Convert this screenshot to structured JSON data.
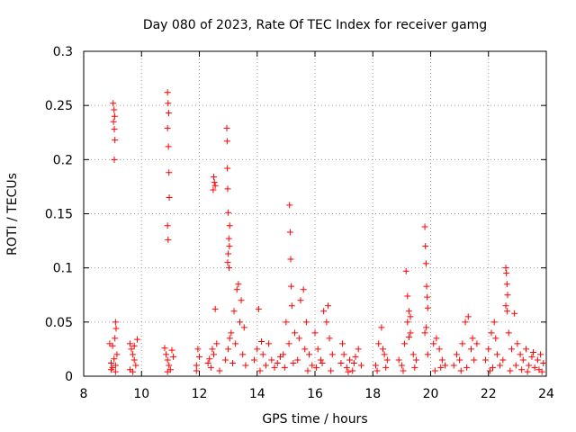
{
  "chart_data": {
    "type": "scatter",
    "title": "Day 080 of 2023, Rate Of TEC Index for receiver gamg",
    "xlabel": "GPS time / hours",
    "ylabel": "ROTI / TECUs",
    "xlim": [
      8,
      24
    ],
    "ylim": [
      0,
      0.3
    ],
    "x_ticks": [
      "8",
      "10",
      "12",
      "14",
      "16",
      "18",
      "20",
      "22",
      "24"
    ],
    "y_ticks": [
      "0",
      "0.05",
      "0.1",
      "0.15",
      "0.2",
      "0.25",
      "0.3"
    ],
    "grid": true,
    "marker": "+",
    "color": "#ff0000",
    "series": [
      {
        "name": "ROTI",
        "points": [
          [
            8.9,
            0.03
          ],
          [
            8.95,
            0.012
          ],
          [
            9.0,
            0.008
          ],
          [
            9.05,
            0.016
          ],
          [
            9.1,
            0.004
          ],
          [
            9.0,
            0.028
          ],
          [
            8.95,
            0.006
          ],
          [
            9.1,
            0.01
          ],
          [
            9.02,
            0.252
          ],
          [
            9.05,
            0.246
          ],
          [
            9.07,
            0.24
          ],
          [
            9.03,
            0.235
          ],
          [
            9.06,
            0.228
          ],
          [
            9.08,
            0.218
          ],
          [
            9.06,
            0.2
          ],
          [
            9.1,
            0.05
          ],
          [
            9.12,
            0.044
          ],
          [
            9.08,
            0.035
          ],
          [
            9.15,
            0.02
          ],
          [
            9.6,
            0.03
          ],
          [
            9.65,
            0.025
          ],
          [
            9.7,
            0.02
          ],
          [
            9.75,
            0.015
          ],
          [
            9.8,
            0.01
          ],
          [
            9.6,
            0.006
          ],
          [
            9.7,
            0.004
          ],
          [
            9.85,
            0.034
          ],
          [
            9.75,
            0.028
          ],
          [
            10.8,
            0.026
          ],
          [
            10.85,
            0.02
          ],
          [
            10.9,
            0.015
          ],
          [
            10.95,
            0.01
          ],
          [
            11.0,
            0.006
          ],
          [
            10.9,
            0.004
          ],
          [
            11.05,
            0.024
          ],
          [
            11.1,
            0.018
          ],
          [
            10.9,
            0.262
          ],
          [
            10.92,
            0.252
          ],
          [
            10.94,
            0.243
          ],
          [
            10.9,
            0.229
          ],
          [
            10.93,
            0.212
          ],
          [
            10.95,
            0.188
          ],
          [
            10.96,
            0.165
          ],
          [
            10.9,
            0.139
          ],
          [
            10.92,
            0.126
          ],
          [
            11.9,
            0.01
          ],
          [
            11.95,
            0.025
          ],
          [
            12.0,
            0.018
          ],
          [
            11.9,
            0.005
          ],
          [
            12.3,
            0.012
          ],
          [
            12.4,
            0.008
          ],
          [
            12.5,
            0.02
          ],
          [
            12.6,
            0.03
          ],
          [
            12.35,
            0.016
          ],
          [
            12.45,
            0.025
          ],
          [
            12.7,
            0.005
          ],
          [
            12.55,
            0.062
          ],
          [
            12.5,
            0.184
          ],
          [
            12.52,
            0.179
          ],
          [
            12.55,
            0.176
          ],
          [
            12.48,
            0.172
          ],
          [
            12.9,
            0.015
          ],
          [
            13.0,
            0.025
          ],
          [
            13.1,
            0.04
          ],
          [
            13.2,
            0.06
          ],
          [
            13.3,
            0.08
          ],
          [
            13.4,
            0.05
          ],
          [
            13.5,
            0.02
          ],
          [
            13.6,
            0.01
          ],
          [
            13.05,
            0.035
          ],
          [
            13.25,
            0.03
          ],
          [
            13.35,
            0.085
          ],
          [
            13.45,
            0.07
          ],
          [
            13.15,
            0.012
          ],
          [
            13.55,
            0.045
          ],
          [
            12.95,
            0.229
          ],
          [
            12.96,
            0.217
          ],
          [
            12.97,
            0.192
          ],
          [
            12.98,
            0.173
          ],
          [
            13.0,
            0.151
          ],
          [
            13.05,
            0.139
          ],
          [
            13.02,
            0.127
          ],
          [
            13.04,
            0.12
          ],
          [
            13.0,
            0.113
          ],
          [
            12.98,
            0.105
          ],
          [
            13.03,
            0.1
          ],
          [
            13.9,
            0.015
          ],
          [
            14.0,
            0.025
          ],
          [
            14.1,
            0.005
          ],
          [
            14.2,
            0.02
          ],
          [
            14.3,
            0.01
          ],
          [
            14.4,
            0.03
          ],
          [
            14.5,
            0.015
          ],
          [
            14.6,
            0.008
          ],
          [
            14.7,
            0.012
          ],
          [
            14.8,
            0.018
          ],
          [
            14.05,
            0.062
          ],
          [
            14.15,
            0.032
          ],
          [
            14.9,
            0.02
          ],
          [
            15.0,
            0.05
          ],
          [
            15.1,
            0.03
          ],
          [
            15.2,
            0.065
          ],
          [
            15.3,
            0.04
          ],
          [
            15.4,
            0.015
          ],
          [
            15.5,
            0.07
          ],
          [
            15.6,
            0.08
          ],
          [
            15.7,
            0.05
          ],
          [
            15.8,
            0.02
          ],
          [
            15.9,
            0.01
          ],
          [
            14.95,
            0.008
          ],
          [
            15.25,
            0.012
          ],
          [
            15.45,
            0.035
          ],
          [
            15.65,
            0.025
          ],
          [
            15.75,
            0.005
          ],
          [
            15.12,
            0.158
          ],
          [
            15.14,
            0.133
          ],
          [
            15.16,
            0.108
          ],
          [
            15.18,
            0.083
          ],
          [
            16.0,
            0.04
          ],
          [
            16.1,
            0.025
          ],
          [
            16.2,
            0.015
          ],
          [
            16.3,
            0.06
          ],
          [
            16.4,
            0.05
          ],
          [
            16.5,
            0.035
          ],
          [
            16.6,
            0.02
          ],
          [
            16.05,
            0.008
          ],
          [
            16.25,
            0.012
          ],
          [
            16.45,
            0.065
          ],
          [
            16.55,
            0.005
          ],
          [
            16.9,
            0.012
          ],
          [
            17.0,
            0.02
          ],
          [
            17.1,
            0.008
          ],
          [
            17.2,
            0.015
          ],
          [
            17.3,
            0.005
          ],
          [
            17.4,
            0.018
          ],
          [
            17.5,
            0.025
          ],
          [
            17.6,
            0.01
          ],
          [
            16.95,
            0.03
          ],
          [
            17.15,
            0.004
          ],
          [
            17.35,
            0.012
          ],
          [
            18.1,
            0.01
          ],
          [
            18.2,
            0.03
          ],
          [
            18.3,
            0.045
          ],
          [
            18.4,
            0.02
          ],
          [
            18.5,
            0.015
          ],
          [
            18.15,
            0.005
          ],
          [
            18.35,
            0.025
          ],
          [
            18.45,
            0.008
          ],
          [
            18.9,
            0.015
          ],
          [
            19.0,
            0.01
          ],
          [
            19.1,
            0.03
          ],
          [
            19.2,
            0.05
          ],
          [
            19.3,
            0.04
          ],
          [
            19.4,
            0.02
          ],
          [
            19.5,
            0.015
          ],
          [
            19.05,
            0.005
          ],
          [
            19.25,
            0.036
          ],
          [
            19.45,
            0.008
          ],
          [
            19.15,
            0.097
          ],
          [
            19.2,
            0.074
          ],
          [
            19.25,
            0.06
          ],
          [
            19.3,
            0.055
          ],
          [
            19.8,
            0.138
          ],
          [
            19.82,
            0.12
          ],
          [
            19.84,
            0.104
          ],
          [
            19.86,
            0.083
          ],
          [
            19.88,
            0.073
          ],
          [
            19.9,
            0.063
          ],
          [
            19.85,
            0.045
          ],
          [
            19.8,
            0.04
          ],
          [
            19.9,
            0.02
          ],
          [
            20.1,
            0.03
          ],
          [
            20.2,
            0.035
          ],
          [
            20.3,
            0.025
          ],
          [
            20.4,
            0.015
          ],
          [
            20.5,
            0.01
          ],
          [
            20.15,
            0.005
          ],
          [
            20.35,
            0.008
          ],
          [
            20.8,
            0.01
          ],
          [
            20.9,
            0.02
          ],
          [
            21.0,
            0.015
          ],
          [
            21.1,
            0.03
          ],
          [
            21.2,
            0.05
          ],
          [
            21.3,
            0.055
          ],
          [
            21.4,
            0.025
          ],
          [
            21.5,
            0.015
          ],
          [
            21.6,
            0.03
          ],
          [
            21.05,
            0.005
          ],
          [
            21.25,
            0.008
          ],
          [
            21.45,
            0.035
          ],
          [
            21.9,
            0.015
          ],
          [
            22.0,
            0.025
          ],
          [
            22.1,
            0.04
          ],
          [
            22.2,
            0.05
          ],
          [
            22.3,
            0.02
          ],
          [
            22.4,
            0.01
          ],
          [
            22.5,
            0.015
          ],
          [
            22.05,
            0.005
          ],
          [
            22.25,
            0.035
          ],
          [
            22.15,
            0.008
          ],
          [
            22.6,
            0.1
          ],
          [
            22.62,
            0.095
          ],
          [
            22.64,
            0.085
          ],
          [
            22.66,
            0.075
          ],
          [
            22.6,
            0.065
          ],
          [
            22.65,
            0.06
          ],
          [
            22.7,
            0.04
          ],
          [
            22.8,
            0.025
          ],
          [
            22.9,
            0.058
          ],
          [
            23.0,
            0.03
          ],
          [
            23.1,
            0.02
          ],
          [
            23.2,
            0.015
          ],
          [
            23.3,
            0.025
          ],
          [
            23.4,
            0.01
          ],
          [
            23.5,
            0.018
          ],
          [
            23.6,
            0.008
          ],
          [
            23.7,
            0.015
          ],
          [
            23.8,
            0.02
          ],
          [
            23.9,
            0.012
          ],
          [
            22.75,
            0.005
          ],
          [
            22.95,
            0.01
          ],
          [
            23.15,
            0.006
          ],
          [
            23.35,
            0.004
          ],
          [
            23.55,
            0.022
          ],
          [
            23.75,
            0.006
          ],
          [
            23.85,
            0.004
          ]
        ]
      }
    ]
  }
}
